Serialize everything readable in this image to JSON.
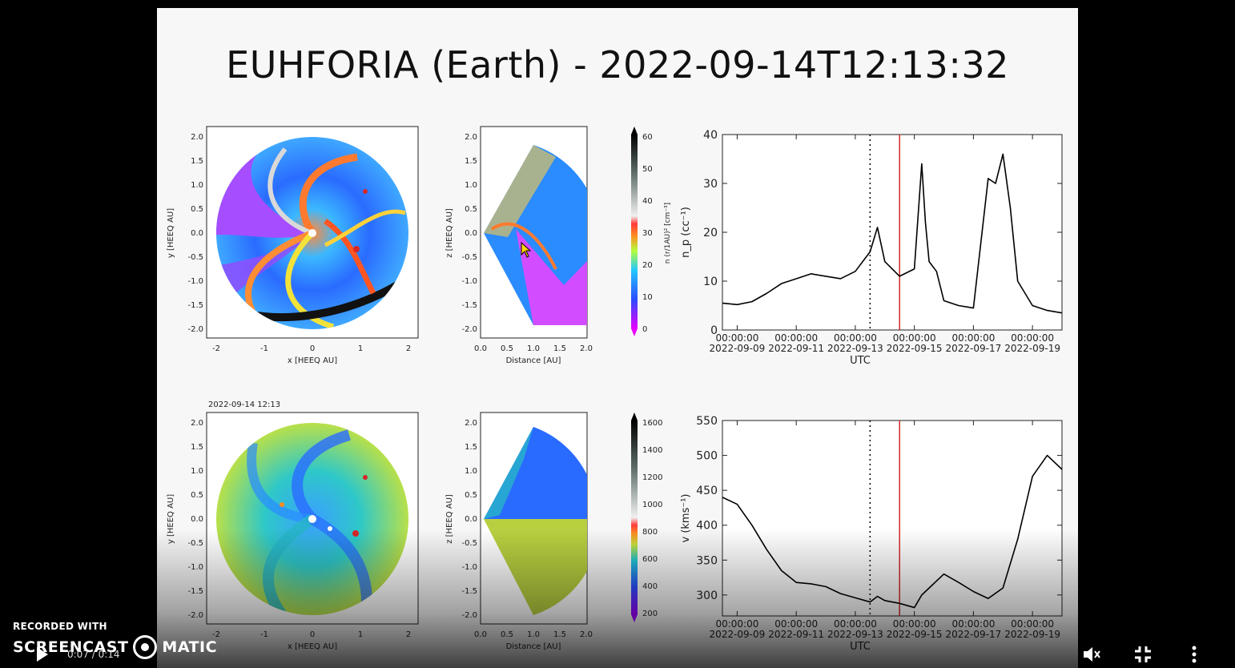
{
  "slide": {
    "title": "EUHFORIA (Earth) -  2022-09-14T12:13:32",
    "bottom_date_stamp": "2022-09-14 12:13"
  },
  "panels": {
    "equatorial_x_label": "x [HEEQ AU]",
    "equatorial_y_label": "y [HEEQ AU]",
    "equatorial_ticks": [
      "-2",
      "-1",
      "0",
      "1",
      "2"
    ],
    "equatorial_yticks": [
      "2.0",
      "1.5",
      "1.0",
      "0.5",
      "0.0",
      "-0.5",
      "-1.0",
      "-1.5",
      "-2.0"
    ],
    "meridional_x_label": "Distance [AU]",
    "meridional_y_label": "z [HEEQ AU]",
    "meridional_xticks": [
      "0.0",
      "0.5",
      "1.0",
      "1.5",
      "2.0"
    ],
    "meridional_yticks": [
      "2.0",
      "1.5",
      "1.0",
      "0.5",
      "0.0",
      "-0.5",
      "-1.0",
      "-1.5",
      "-2.0"
    ],
    "density_colorbar_label": "n (r/1AU)² [cm⁻³]",
    "density_colorbar_ticks": [
      "60",
      "50",
      "40",
      "30",
      "20",
      "10",
      "0"
    ],
    "speed_colorbar_ticks": [
      "1600",
      "1400",
      "1200",
      "1000",
      "800",
      "600",
      "400",
      "200"
    ]
  },
  "chart_data": [
    {
      "type": "line",
      "ylabel": "n_p (cc⁻¹)",
      "xlabel": "UTC",
      "ylim": [
        0,
        40
      ],
      "yticks": [
        "0",
        "10",
        "20",
        "30",
        "40"
      ],
      "xticks": [
        {
          "top": "00:00:00",
          "bottom": "2022-09-09"
        },
        {
          "top": "00:00:00",
          "bottom": "2022-09-11"
        },
        {
          "top": "00:00:00",
          "bottom": "2022-09-13"
        },
        {
          "top": "00:00:00",
          "bottom": "2022-09-15"
        },
        {
          "top": "00:00:00",
          "bottom": "2022-09-17"
        },
        {
          "top": "00:00:00",
          "bottom": "2022-09-19"
        }
      ],
      "xrange_days": [
        "2022-09-09",
        "2022-09-20T00:00"
      ],
      "vlines": [
        {
          "x": "2022-09-13T12:00",
          "style": "dotted",
          "color": "#000000"
        },
        {
          "x": "2022-09-14T12:00",
          "style": "solid",
          "color": "#d62728"
        }
      ],
      "series": [
        {
          "x": [
            "2022-09-08T12:00",
            "2022-09-09T00:00",
            "2022-09-09T12:00",
            "2022-09-10T00:00",
            "2022-09-10T12:00",
            "2022-09-11T00:00",
            "2022-09-11T12:00",
            "2022-09-12T00:00",
            "2022-09-12T12:00",
            "2022-09-13T00:00",
            "2022-09-13T12:00",
            "2022-09-13T18:00",
            "2022-09-14T00:00",
            "2022-09-14T12:00",
            "2022-09-15T00:00",
            "2022-09-15T06:00",
            "2022-09-15T09:00",
            "2022-09-15T12:00",
            "2022-09-15T18:00",
            "2022-09-16T00:00",
            "2022-09-16T06:00",
            "2022-09-16T12:00",
            "2022-09-17T00:00",
            "2022-09-17T12:00",
            "2022-09-17T18:00",
            "2022-09-18T00:00",
            "2022-09-18T06:00",
            "2022-09-18T12:00",
            "2022-09-19T00:00",
            "2022-09-19T12:00",
            "2022-09-20T00:00"
          ],
          "y": [
            5.5,
            5.2,
            5.8,
            7.5,
            9.5,
            10.5,
            11.5,
            11.0,
            10.5,
            12.0,
            16.0,
            21.0,
            14.0,
            11.0,
            12.5,
            34.0,
            22.0,
            14.0,
            12.0,
            6.0,
            5.5,
            5.0,
            4.5,
            31.0,
            30.0,
            36.0,
            25.0,
            10.0,
            5.0,
            4.0,
            3.5
          ]
        }
      ]
    },
    {
      "type": "line",
      "ylabel": "v (kms⁻¹)",
      "xlabel": "UTC",
      "ylim": [
        270,
        550
      ],
      "yticks": [
        "300",
        "350",
        "400",
        "450",
        "500",
        "550"
      ],
      "xticks": [
        {
          "top": "00:00:00",
          "bottom": "2022-09-09"
        },
        {
          "top": "00:00:00",
          "bottom": "2022-09-11"
        },
        {
          "top": "00:00:00",
          "bottom": "2022-09-13"
        },
        {
          "top": "00:00:00",
          "bottom": "2022-09-15"
        },
        {
          "top": "00:00:00",
          "bottom": "2022-09-17"
        },
        {
          "top": "00:00:00",
          "bottom": "2022-09-19"
        }
      ],
      "xrange_days": [
        "2022-09-09",
        "2022-09-20T00:00"
      ],
      "vlines": [
        {
          "x": "2022-09-13T12:00",
          "style": "dotted",
          "color": "#000000"
        },
        {
          "x": "2022-09-14T12:00",
          "style": "solid",
          "color": "#d62728"
        }
      ],
      "series": [
        {
          "x": [
            "2022-09-08T12:00",
            "2022-09-09T00:00",
            "2022-09-09T12:00",
            "2022-09-10T00:00",
            "2022-09-10T12:00",
            "2022-09-11T00:00",
            "2022-09-11T12:00",
            "2022-09-12T00:00",
            "2022-09-12T12:00",
            "2022-09-13T00:00",
            "2022-09-13T12:00",
            "2022-09-13T18:00",
            "2022-09-14T00:00",
            "2022-09-14T12:00",
            "2022-09-15T00:00",
            "2022-09-15T06:00",
            "2022-09-15T12:00",
            "2022-09-16T00:00",
            "2022-09-16T12:00",
            "2022-09-17T00:00",
            "2022-09-17T12:00",
            "2022-09-18T00:00",
            "2022-09-18T12:00",
            "2022-09-19T00:00",
            "2022-09-19T12:00",
            "2022-09-20T00:00"
          ],
          "y": [
            440,
            430,
            400,
            365,
            335,
            318,
            316,
            312,
            302,
            296,
            290,
            298,
            292,
            288,
            282,
            300,
            310,
            330,
            318,
            305,
            295,
            310,
            380,
            470,
            500,
            480
          ]
        }
      ]
    }
  ],
  "overlay": {
    "recorded_with": "RECORDED WITH",
    "brand_left": "SCREENCAST",
    "brand_right": "MATIC",
    "time": "0:07 / 0:14"
  },
  "colors": {
    "vline_red": "#d62728",
    "slide_bg": "#f7f7f7"
  },
  "icons": {
    "play": "play-icon",
    "mute": "speaker-mute-icon",
    "fullscreen_exit": "fullscreen-exit-icon",
    "more": "more-vertical-icon"
  }
}
